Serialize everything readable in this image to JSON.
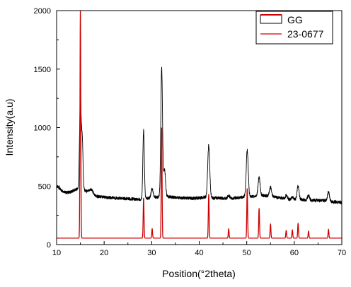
{
  "chart_data": {
    "type": "line",
    "xlabel": "Position(°2theta)",
    "ylabel": "Intensity(a.u)",
    "xlim": [
      10,
      70
    ],
    "ylim": [
      0,
      2000
    ],
    "x_ticks": [
      10,
      20,
      30,
      40,
      50,
      60,
      70
    ],
    "y_ticks": [
      0,
      500,
      1000,
      1500,
      2000
    ],
    "grid": false,
    "legend_position": "top-right",
    "colors": {
      "GG": "#000000",
      "23-0677": "#cc0000"
    },
    "series": [
      {
        "name": "GG",
        "baseline": [
          [
            10,
            500
          ],
          [
            11,
            465
          ],
          [
            12,
            445
          ],
          [
            13,
            450
          ],
          [
            14,
            470
          ],
          [
            15,
            480
          ],
          [
            17,
            440
          ],
          [
            18,
            415
          ],
          [
            20,
            405
          ],
          [
            23,
            395
          ],
          [
            26,
            390
          ],
          [
            28,
            385
          ],
          [
            29,
            395
          ],
          [
            31,
            405
          ],
          [
            33,
            410
          ],
          [
            36,
            400
          ],
          [
            39,
            395
          ],
          [
            41,
            405
          ],
          [
            43,
            400
          ],
          [
            45,
            395
          ],
          [
            47,
            395
          ],
          [
            49,
            405
          ],
          [
            51,
            410
          ],
          [
            53,
            420
          ],
          [
            55,
            415
          ],
          [
            57,
            400
          ],
          [
            59,
            385
          ],
          [
            61,
            385
          ],
          [
            63,
            380
          ],
          [
            65,
            378
          ],
          [
            67,
            375
          ],
          [
            68,
            365
          ],
          [
            70,
            360
          ]
        ],
        "peaks": [
          {
            "x": 15.0,
            "y": 1240,
            "w": 0.25
          },
          {
            "x": 15.4,
            "y": 880,
            "w": 0.22
          },
          {
            "x": 17.2,
            "y": 470,
            "w": 0.6
          },
          {
            "x": 28.3,
            "y": 975,
            "w": 0.22
          },
          {
            "x": 30.1,
            "y": 480,
            "w": 0.3
          },
          {
            "x": 32.1,
            "y": 1505,
            "w": 0.25
          },
          {
            "x": 32.7,
            "y": 640,
            "w": 0.3
          },
          {
            "x": 42.0,
            "y": 850,
            "w": 0.3
          },
          {
            "x": 46.2,
            "y": 420,
            "w": 0.3
          },
          {
            "x": 50.1,
            "y": 805,
            "w": 0.3
          },
          {
            "x": 52.6,
            "y": 575,
            "w": 0.3
          },
          {
            "x": 55.0,
            "y": 490,
            "w": 0.3
          },
          {
            "x": 58.3,
            "y": 420,
            "w": 0.3
          },
          {
            "x": 59.6,
            "y": 410,
            "w": 0.25
          },
          {
            "x": 60.8,
            "y": 500,
            "w": 0.3
          },
          {
            "x": 63.0,
            "y": 420,
            "w": 0.3
          },
          {
            "x": 67.2,
            "y": 450,
            "w": 0.3
          }
        ]
      },
      {
        "name": "23-0677",
        "baseline_value": 55,
        "peaks": [
          {
            "x": 15.0,
            "y": 2000,
            "w": 0.12
          },
          {
            "x": 28.3,
            "y": 400,
            "w": 0.12
          },
          {
            "x": 30.1,
            "y": 135,
            "w": 0.12
          },
          {
            "x": 32.1,
            "y": 1000,
            "w": 0.12
          },
          {
            "x": 42.0,
            "y": 430,
            "w": 0.12
          },
          {
            "x": 46.2,
            "y": 135,
            "w": 0.12
          },
          {
            "x": 50.1,
            "y": 480,
            "w": 0.12
          },
          {
            "x": 52.6,
            "y": 310,
            "w": 0.12
          },
          {
            "x": 55.0,
            "y": 175,
            "w": 0.12
          },
          {
            "x": 58.3,
            "y": 120,
            "w": 0.12
          },
          {
            "x": 59.6,
            "y": 125,
            "w": 0.12
          },
          {
            "x": 60.8,
            "y": 180,
            "w": 0.12
          },
          {
            "x": 63.0,
            "y": 115,
            "w": 0.12
          },
          {
            "x": 67.2,
            "y": 130,
            "w": 0.12
          }
        ]
      }
    ]
  }
}
